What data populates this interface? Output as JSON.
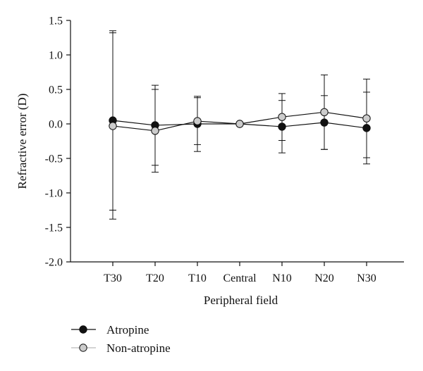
{
  "chart_data": {
    "type": "line",
    "title": "",
    "xlabel": "Peripheral field",
    "ylabel": "Refractive error (D)",
    "categories": [
      "T30",
      "T20",
      "T10",
      "Central",
      "N10",
      "N20",
      "N30"
    ],
    "ylim": [
      -2.0,
      1.5
    ],
    "yticks": [
      "1.5",
      "1.0",
      "0.5",
      "0.0",
      "-0.5",
      "-1.0",
      "-1.5",
      "-2.0"
    ],
    "grid": false,
    "legend_position": "bottom-left",
    "series": [
      {
        "name": "Atropine",
        "color": "#111111",
        "values": [
          0.05,
          -0.02,
          0.0,
          0.0,
          -0.04,
          0.02,
          -0.06
        ],
        "error": [
          1.3,
          0.58,
          0.4,
          0.0,
          0.38,
          0.39,
          0.52
        ]
      },
      {
        "name": "Non-atropine",
        "color": "#cccccc",
        "values": [
          -0.03,
          -0.1,
          0.04,
          0.0,
          0.1,
          0.17,
          0.08
        ],
        "error": [
          1.35,
          0.6,
          0.34,
          0.0,
          0.34,
          0.54,
          0.57
        ]
      }
    ]
  }
}
